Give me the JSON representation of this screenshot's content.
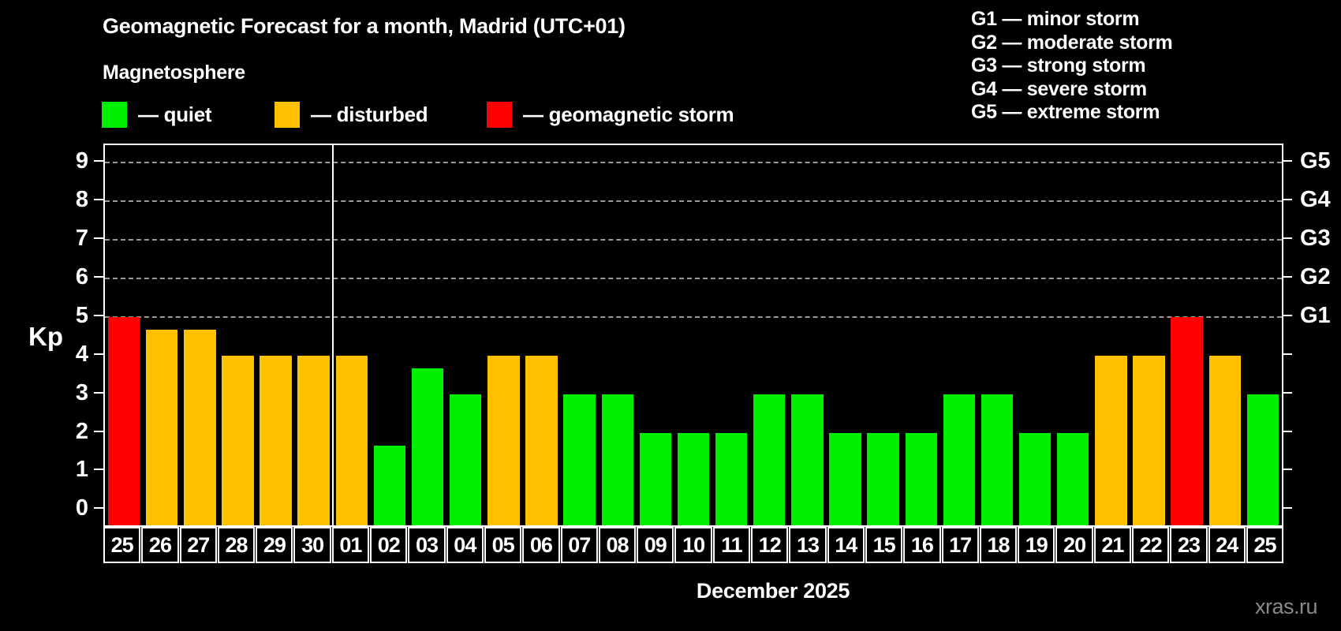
{
  "title": "Geomagnetic Forecast for a month, Madrid (UTC+01)",
  "subtitle": "Magnetosphere",
  "legend": {
    "items": [
      {
        "name": "quiet",
        "label": "— quiet",
        "color": "#00ee00",
        "x": 129
      },
      {
        "name": "disturbed",
        "label": "— disturbed",
        "color": "#ffc000",
        "x": 348
      },
      {
        "name": "storm",
        "label": "— geomagnetic storm",
        "color": "#ff0000",
        "x": 617
      }
    ]
  },
  "g_legend": [
    "G1 — minor storm",
    "G2 — moderate storm",
    "G3 — strong storm",
    "G4 — severe storm",
    "G5 — extreme storm"
  ],
  "chart_data": {
    "type": "bar",
    "title": "Geomagnetic Forecast for a month, Madrid (UTC+01)",
    "xlabel": "December 2025",
    "ylabel": "Kp",
    "ylim": [
      0,
      9
    ],
    "y_ticks": [
      0,
      1,
      2,
      3,
      4,
      5,
      6,
      7,
      8,
      9
    ],
    "gridlines_at": [
      5,
      6,
      7,
      8,
      9
    ],
    "right_axis": [
      {
        "value": 5,
        "label": "G1"
      },
      {
        "value": 6,
        "label": "G2"
      },
      {
        "value": 7,
        "label": "G3"
      },
      {
        "value": 8,
        "label": "G4"
      },
      {
        "value": 9,
        "label": "G5"
      }
    ],
    "categories": [
      "25",
      "26",
      "27",
      "28",
      "29",
      "30",
      "01",
      "02",
      "03",
      "04",
      "05",
      "06",
      "07",
      "08",
      "09",
      "10",
      "11",
      "12",
      "13",
      "14",
      "15",
      "16",
      "17",
      "18",
      "19",
      "20",
      "21",
      "22",
      "23",
      "24",
      "25"
    ],
    "values": [
      5,
      4.67,
      4.67,
      4,
      4,
      4,
      4,
      1.67,
      3.67,
      3,
      4,
      4,
      3,
      3,
      2,
      2,
      2,
      3,
      3,
      2,
      2,
      2,
      3,
      3,
      2,
      2,
      4,
      4,
      5,
      4,
      3
    ],
    "statuses": [
      "storm",
      "disturbed",
      "disturbed",
      "disturbed",
      "disturbed",
      "disturbed",
      "disturbed",
      "quiet",
      "quiet",
      "quiet",
      "disturbed",
      "disturbed",
      "quiet",
      "quiet",
      "quiet",
      "quiet",
      "quiet",
      "quiet",
      "quiet",
      "quiet",
      "quiet",
      "quiet",
      "quiet",
      "quiet",
      "quiet",
      "quiet",
      "disturbed",
      "disturbed",
      "storm",
      "disturbed",
      "quiet"
    ],
    "status_colors": {
      "quiet": "#00ee00",
      "disturbed": "#ffc000",
      "storm": "#ff0000"
    },
    "month_separator_after_index": 5,
    "grid": "horizontal-dashed",
    "legend_position": "top-left"
  },
  "colors": {
    "background": "#000000",
    "axis": "#ffffff",
    "gridline": "#9a9a9a",
    "watermark": "#8a8a8a"
  },
  "footer": {
    "watermark": "xras.ru"
  }
}
